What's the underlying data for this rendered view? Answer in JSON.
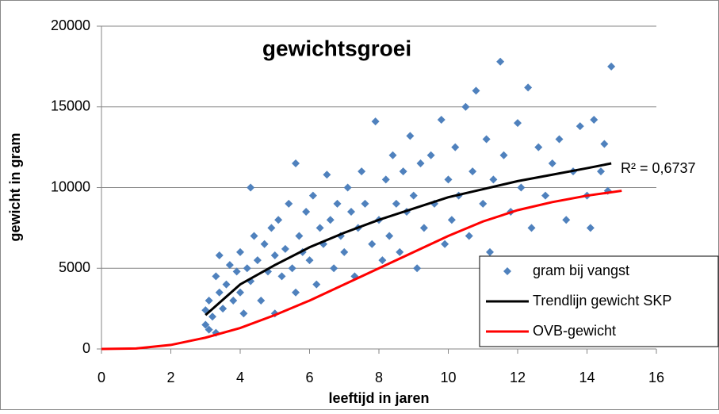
{
  "chart_data": {
    "type": "scatter",
    "title": "gewichtsgroei",
    "xlabel": "leeftijd in jaren",
    "ylabel": "gewicht in gram",
    "annotation": "R² = 0,6737",
    "xlim": [
      0,
      16
    ],
    "xticks": [
      0,
      2,
      4,
      6,
      8,
      10,
      12,
      14,
      16
    ],
    "ylim": [
      0,
      20000
    ],
    "yticks": [
      0,
      5000,
      10000,
      15000,
      20000
    ],
    "grid": true,
    "legend": "lower right",
    "series": [
      {
        "name": "gram bij vangst",
        "type": "scatter",
        "color": "#4f81bd",
        "x": [
          3.0,
          3.0,
          3.1,
          3.1,
          3.2,
          3.3,
          3.3,
          3.4,
          3.4,
          3.5,
          3.6,
          3.7,
          3.8,
          3.9,
          4.0,
          4.0,
          4.1,
          4.2,
          4.3,
          4.3,
          4.4,
          4.5,
          4.6,
          4.7,
          4.8,
          4.9,
          5.0,
          5.0,
          5.1,
          5.2,
          5.3,
          5.4,
          5.5,
          5.6,
          5.6,
          5.7,
          5.8,
          5.9,
          6.0,
          6.1,
          6.2,
          6.3,
          6.4,
          6.5,
          6.6,
          6.7,
          6.8,
          6.9,
          7.0,
          7.1,
          7.2,
          7.3,
          7.4,
          7.5,
          7.6,
          7.8,
          7.9,
          8.0,
          8.1,
          8.2,
          8.3,
          8.4,
          8.5,
          8.6,
          8.7,
          8.8,
          8.9,
          9.0,
          9.1,
          9.2,
          9.3,
          9.5,
          9.6,
          9.8,
          9.9,
          10.0,
          10.1,
          10.2,
          10.3,
          10.5,
          10.6,
          10.7,
          10.8,
          11.0,
          11.1,
          11.2,
          11.3,
          11.5,
          11.6,
          11.8,
          12.0,
          12.1,
          12.3,
          12.4,
          12.6,
          12.8,
          13.0,
          13.2,
          13.4,
          13.6,
          13.8,
          14.0,
          14.1,
          14.2,
          14.4,
          14.5,
          14.7,
          14.6
        ],
        "values": [
          1500,
          2400,
          1200,
          3000,
          2000,
          4500,
          1000,
          5800,
          3500,
          2500,
          4000,
          5200,
          3000,
          4800,
          6000,
          3500,
          2200,
          5000,
          10000,
          4200,
          7000,
          5500,
          3000,
          6500,
          4800,
          7500,
          5800,
          2200,
          8000,
          4500,
          6200,
          9000,
          5000,
          11500,
          3500,
          7000,
          6000,
          8500,
          5500,
          9500,
          4000,
          7500,
          6500,
          10800,
          8000,
          5000,
          9000,
          7000,
          6000,
          10000,
          8500,
          4500,
          7500,
          11000,
          9000,
          6500,
          14100,
          8000,
          5500,
          10500,
          7000,
          12000,
          9000,
          6000,
          11000,
          8500,
          13200,
          9500,
          5000,
          11500,
          7500,
          12000,
          9000,
          14200,
          6500,
          10500,
          8000,
          12500,
          9500,
          15000,
          7000,
          11000,
          16000,
          9000,
          13000,
          6000,
          10500,
          17800,
          12000,
          8500,
          14000,
          10000,
          16200,
          7500,
          12500,
          9500,
          11500,
          13000,
          8000,
          11000,
          13800,
          9500,
          7500,
          14200,
          11000,
          12700,
          17500,
          9800
        ]
      },
      {
        "name": "Trendlijn gewicht SKP",
        "type": "line",
        "color": "#000000",
        "x": [
          3,
          4,
          5,
          6,
          7,
          8,
          9,
          10,
          11,
          12,
          13,
          14,
          14.7
        ],
        "values": [
          2100,
          4000,
          5200,
          6300,
          7200,
          8000,
          8700,
          9400,
          9900,
          10400,
          10800,
          11200,
          11500
        ]
      },
      {
        "name": "OVB-gewicht",
        "type": "line",
        "color": "#ff0000",
        "x": [
          0,
          1,
          2,
          3,
          4,
          5,
          6,
          7,
          8,
          9,
          10,
          11,
          12,
          13,
          14,
          15
        ],
        "values": [
          0,
          30,
          250,
          700,
          1300,
          2100,
          3000,
          4000,
          5000,
          6000,
          7000,
          7900,
          8600,
          9100,
          9500,
          9800
        ]
      }
    ]
  }
}
